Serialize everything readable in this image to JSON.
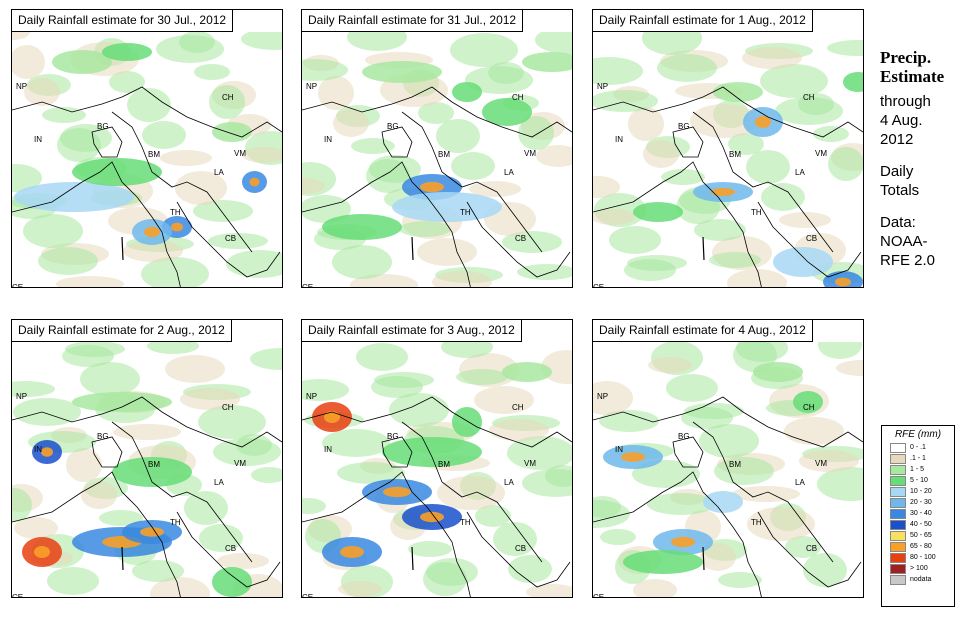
{
  "panels": [
    {
      "title": "Daily Rainfall estimate for  30 Jul., 2012"
    },
    {
      "title": "Daily Rainfall estimate for  31 Jul., 2012"
    },
    {
      "title": "Daily Rainfall estimate for  1 Aug., 2012"
    },
    {
      "title": "Daily Rainfall estimate for  2 Aug., 2012"
    },
    {
      "title": "Daily Rainfall estimate for  3 Aug., 2012"
    },
    {
      "title": "Daily Rainfall estimate for  4 Aug., 2012"
    }
  ],
  "map_labels": [
    "NP",
    "CH",
    "IN",
    "BG",
    "BM",
    "VM",
    "LA",
    "TH",
    "CB",
    "CE"
  ],
  "side": {
    "title_line1": "Precip.",
    "title_line2": "Estimate",
    "through": "through",
    "date_line1": "4 Aug.",
    "date_line2": "2012",
    "daily1": "Daily",
    "daily2": "Totals",
    "data1": "Data:",
    "data2": "NOAA-",
    "data3": "RFE 2.0"
  },
  "legend": {
    "title": "RFE (mm)",
    "items": [
      {
        "label": "0 - .1",
        "color": "#ffffff"
      },
      {
        "label": ".1 - 1",
        "color": "#e8d8bc"
      },
      {
        "label": "1 - 5",
        "color": "#a8e8a0"
      },
      {
        "label": "5 - 10",
        "color": "#66dd77"
      },
      {
        "label": "10 - 20",
        "color": "#a8d8f4"
      },
      {
        "label": "20 - 30",
        "color": "#70b8ec"
      },
      {
        "label": "30 - 40",
        "color": "#3a88e0"
      },
      {
        "label": "40 - 50",
        "color": "#1a50cc"
      },
      {
        "label": "50 - 65",
        "color": "#f8e060"
      },
      {
        "label": "65 - 80",
        "color": "#f8a028"
      },
      {
        "label": "80 - 100",
        "color": "#e84010"
      },
      {
        "label": "> 100",
        "color": "#a02020"
      },
      {
        "label": "nodata",
        "color": "#c8c8c8"
      }
    ]
  }
}
